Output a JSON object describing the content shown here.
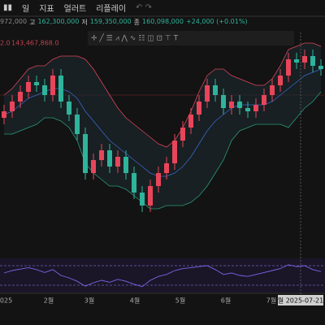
{
  "toolbar": {
    "items": [
      "일",
      "지표",
      "얼러트",
      "리플레이"
    ]
  },
  "ohlc": {
    "open": "972,000",
    "items": [
      {
        "label": "고",
        "value": "162,300,000"
      },
      {
        "label": "저",
        "value": "159,350,000"
      },
      {
        "label": "종",
        "value": "160,098,000"
      }
    ],
    "change": "+24,000 (+0.01%)"
  },
  "indicator": {
    "params": "2.0",
    "value": "143,467,868.0"
  },
  "chart_data": {
    "type": "candlestick",
    "up_color": "#e8455a",
    "down_color": "#2fb39a",
    "ylim": [
      170000000,
      105000000
    ],
    "open": [
      145000000,
      147000000,
      150000000,
      153000000,
      156000000,
      155000000,
      152000000,
      158000000,
      150000000,
      146000000,
      140000000,
      128000000,
      132000000,
      135000000,
      130000000,
      133000000,
      128000000,
      122000000,
      118000000,
      124000000,
      128000000,
      131000000,
      138000000,
      142000000,
      146000000,
      150000000,
      155000000,
      152000000,
      148000000,
      150000000,
      148000000,
      147000000,
      149000000,
      152000000,
      155000000,
      158000000,
      163000000,
      162000000,
      164000000,
      161000000
    ],
    "high": [
      149000000,
      152000000,
      155000000,
      158000000,
      158000000,
      157000000,
      160000000,
      160000000,
      152000000,
      148000000,
      142000000,
      134000000,
      137000000,
      137000000,
      135000000,
      135000000,
      130000000,
      124000000,
      126000000,
      130000000,
      133000000,
      140000000,
      144000000,
      148000000,
      152000000,
      157000000,
      157000000,
      154000000,
      152000000,
      152000000,
      150000000,
      151000000,
      154000000,
      157000000,
      160000000,
      165000000,
      165000000,
      166000000,
      166000000,
      163000000
    ],
    "low": [
      143000000,
      145000000,
      148000000,
      151000000,
      153000000,
      150000000,
      150000000,
      148000000,
      144000000,
      138000000,
      126000000,
      126000000,
      130000000,
      128000000,
      128000000,
      126000000,
      120000000,
      116000000,
      116000000,
      122000000,
      126000000,
      129000000,
      136000000,
      140000000,
      144000000,
      148000000,
      150000000,
      146000000,
      146000000,
      146000000,
      145000000,
      145000000,
      147000000,
      150000000,
      153000000,
      156000000,
      160000000,
      160000000,
      159000000,
      158000000
    ],
    "close": [
      147000000,
      150000000,
      153000000,
      156000000,
      155000000,
      152000000,
      158000000,
      150000000,
      146000000,
      140000000,
      128000000,
      132000000,
      135000000,
      130000000,
      133000000,
      128000000,
      122000000,
      118000000,
      124000000,
      128000000,
      131000000,
      138000000,
      142000000,
      146000000,
      150000000,
      155000000,
      152000000,
      148000000,
      150000000,
      148000000,
      147000000,
      149000000,
      152000000,
      155000000,
      158000000,
      163000000,
      162000000,
      164000000,
      161000000,
      160000000
    ],
    "bands": [
      {
        "color": "#d9455a",
        "values": [
          152000000,
          154000000,
          157000000,
          160000000,
          161000000,
          161000000,
          163000000,
          164000000,
          164000000,
          164000000,
          163000000,
          160000000,
          156000000,
          152000000,
          148000000,
          145000000,
          143000000,
          141000000,
          139000000,
          137000000,
          136000000,
          138000000,
          142000000,
          147000000,
          153000000,
          158000000,
          160000000,
          160000000,
          158000000,
          157000000,
          156000000,
          155000000,
          155000000,
          157000000,
          161000000,
          166000000,
          167000000,
          168000000,
          168000000,
          167000000
        ]
      },
      {
        "color": "#3a66c9",
        "values": [
          146000000,
          147000000,
          149000000,
          151000000,
          152000000,
          153000000,
          154000000,
          154000000,
          153000000,
          151000000,
          147000000,
          144000000,
          141000000,
          138000000,
          136000000,
          134000000,
          132000000,
          130000000,
          128000000,
          127000000,
          127000000,
          128000000,
          130000000,
          133000000,
          137000000,
          141000000,
          144000000,
          146000000,
          148000000,
          149000000,
          149000000,
          149000000,
          149000000,
          150000000,
          152000000,
          154000000,
          156000000,
          158000000,
          159000000,
          160000000
        ]
      },
      {
        "color": "#2a9a78",
        "values": [
          140000000,
          140000000,
          141000000,
          142000000,
          143000000,
          145000000,
          145000000,
          144000000,
          142000000,
          138000000,
          131000000,
          128000000,
          126000000,
          124000000,
          124000000,
          123000000,
          121000000,
          119000000,
          117000000,
          117000000,
          118000000,
          118000000,
          118000000,
          119000000,
          121000000,
          124000000,
          128000000,
          132000000,
          138000000,
          141000000,
          142000000,
          143000000,
          143000000,
          143000000,
          143000000,
          142000000,
          145000000,
          148000000,
          150000000,
          153000000
        ]
      }
    ],
    "rsi": {
      "color": "#7d64e8",
      "ylim": [
        85,
        15
      ],
      "values": [
        55,
        60,
        63,
        66,
        62,
        56,
        62,
        50,
        45,
        38,
        28,
        35,
        40,
        36,
        42,
        38,
        32,
        27,
        40,
        48,
        52,
        60,
        64,
        66,
        68,
        70,
        62,
        52,
        55,
        50,
        48,
        52,
        56,
        60,
        64,
        72,
        68,
        70,
        62,
        58
      ],
      "yticks": [
        70,
        30
      ]
    },
    "xticks": [
      {
        "value": 0,
        "label": "2025"
      },
      {
        "value": 5.5,
        "label": "2월"
      },
      {
        "value": 10.5,
        "label": "3월"
      },
      {
        "value": 16.1,
        "label": "4월"
      },
      {
        "value": 21.7,
        "label": "5월"
      },
      {
        "value": 27.3,
        "label": "6월"
      },
      {
        "value": 32.9,
        "label": "7월"
      }
    ],
    "crosshair": {
      "value": 36.5,
      "label": "월 2025-07-21"
    }
  }
}
